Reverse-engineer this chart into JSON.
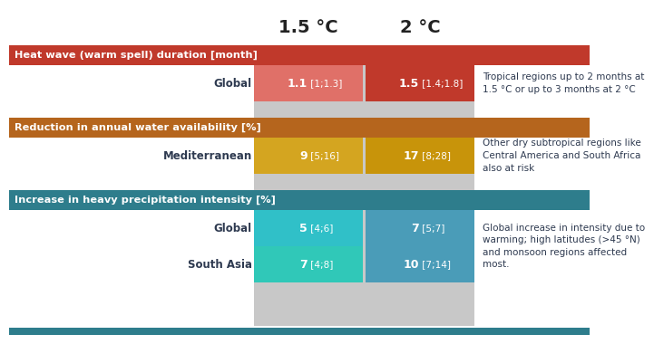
{
  "header_15": "1.5 °C",
  "header_2": "2 °C",
  "sections": [
    {
      "title": "Heat wave (warm spell) duration [month]",
      "title_bg": "#C0392B",
      "rows": [
        {
          "label": "Global",
          "val_15": "1.1",
          "bracket_15": " [1;1.3]",
          "val_2": "1.5",
          "bracket_2": " [1.4;1.8]",
          "cell_15": "#E07068",
          "cell_2": "#C0392B",
          "note": "Tropical regions up to 2 months at\n1.5 °C or up to 3 months at 2 °C"
        }
      ]
    },
    {
      "title": "Reduction in annual water availability [%]",
      "title_bg": "#B5651D",
      "rows": [
        {
          "label": "Mediterranean",
          "val_15": "9",
          "bracket_15": " [5;16]",
          "val_2": "17",
          "bracket_2": " [8;28]",
          "cell_15": "#D4A520",
          "cell_2": "#C8940A",
          "note": "Other dry subtropical regions like\nCentral America and South Africa\nalso at risk"
        }
      ]
    },
    {
      "title": "Increase in heavy precipitation intensity [%]",
      "title_bg": "#2E7D8C",
      "rows": [
        {
          "label": "Global",
          "val_15": "5",
          "bracket_15": " [4;6]",
          "val_2": "7",
          "bracket_2": " [5;7]",
          "cell_15": "#30C0C8",
          "cell_2": "#4A9CB8",
          "note": "Global increase in intensity due to\nwarming; high latitudes (>45 °N)\nand monsoon regions affected\nmost."
        },
        {
          "label": "South Asia",
          "val_15": "7",
          "bracket_15": " [4;8]",
          "val_2": "10",
          "bracket_2": " [7;14]",
          "cell_15": "#30C8B8",
          "cell_2": "#4A9CB8",
          "note": null
        }
      ]
    }
  ],
  "gray_col_bg": "#C8C8C8",
  "bottom_line_color": "#2E7D8C",
  "note_color": "#2E3A50",
  "label_color": "#2E3A50"
}
